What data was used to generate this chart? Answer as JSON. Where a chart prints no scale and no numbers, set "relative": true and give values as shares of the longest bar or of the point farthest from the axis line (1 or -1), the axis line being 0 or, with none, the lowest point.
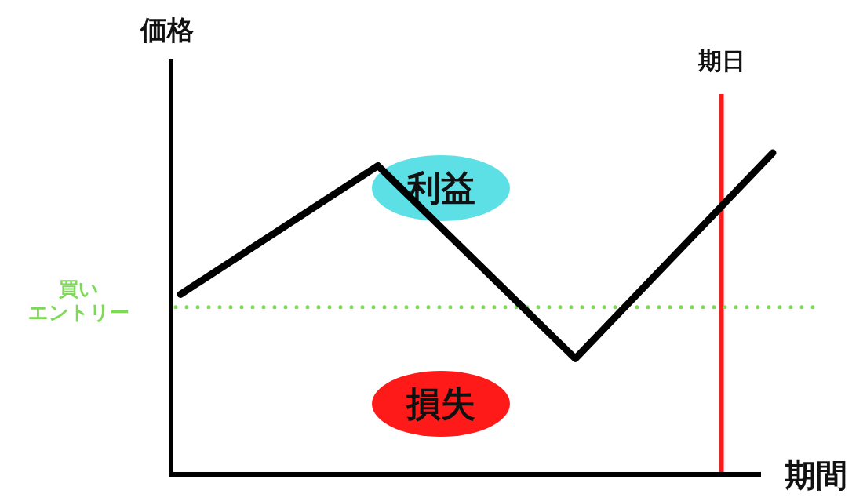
{
  "chart_data": {
    "type": "line",
    "xlabel": "期間",
    "ylabel": "価格",
    "relative": true,
    "categories": [
      null,
      null,
      null,
      null
    ],
    "series": [
      {
        "color": "#000000",
        "values": [
          0.56,
          0.96,
          0.36,
          1
        ]
      }
    ],
    "ref_lines": [
      {
        "axis": "y",
        "value": 0.52,
        "label": "買いエントリー",
        "color": "#7ed957",
        "line_style": "dotted"
      }
    ],
    "annotations": [
      "利益",
      "損失",
      "期日"
    ]
  }
}
